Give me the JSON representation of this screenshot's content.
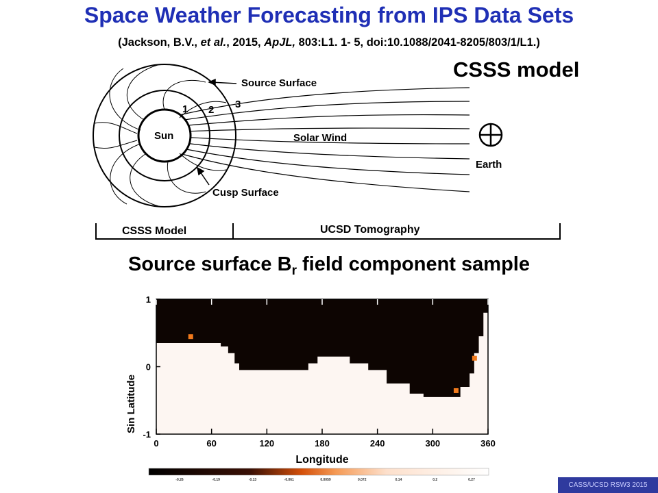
{
  "slide": {
    "title": "Space Weather Forecasting from IPS Data Sets",
    "citation": {
      "open": "(Jackson, B.V., ",
      "etal": "et al.",
      "mid": ", 2015, ",
      "journal": "ApJL,",
      "rest": " 803:L1. 1- 5, doi:10.1088/2041-8205/803/1/L1.)"
    },
    "model_label": "CSSS model",
    "section_heading": "Source surface B",
    "section_heading_sub": "r",
    "section_heading_rest": " field component sample",
    "footer": "CASS/UCSD  RSW3 2015"
  },
  "diagram": {
    "source_surface": "Source Surface",
    "cusp_surface": "Cusp Surface",
    "solar_wind": "Solar Wind",
    "sun": "Sun",
    "earth": "Earth",
    "region_1": "1",
    "region_2": "2",
    "region_3": "3",
    "bracket_left": "CSSS Model",
    "bracket_right": "UCSD Tomography"
  },
  "chart_data": {
    "type": "heatmap",
    "xlabel": "Longitude",
    "ylabel": "Sin Latitude",
    "x_ticks": [
      "0",
      "60",
      "120",
      "180",
      "240",
      "300",
      "360"
    ],
    "y_ticks": [
      "1",
      "0",
      "-1"
    ],
    "xlim": [
      0,
      360
    ],
    "ylim": [
      -1,
      1
    ],
    "neutral_line": [
      {
        "lon": 0,
        "sinlat": 0.35
      },
      {
        "lon": 30,
        "sinlat": 0.35
      },
      {
        "lon": 50,
        "sinlat": 0.35
      },
      {
        "lon": 70,
        "sinlat": 0.3
      },
      {
        "lon": 78,
        "sinlat": 0.2
      },
      {
        "lon": 85,
        "sinlat": 0.05
      },
      {
        "lon": 90,
        "sinlat": -0.05
      },
      {
        "lon": 120,
        "sinlat": -0.05
      },
      {
        "lon": 150,
        "sinlat": -0.05
      },
      {
        "lon": 165,
        "sinlat": 0.05
      },
      {
        "lon": 175,
        "sinlat": 0.15
      },
      {
        "lon": 200,
        "sinlat": 0.15
      },
      {
        "lon": 210,
        "sinlat": 0.05
      },
      {
        "lon": 230,
        "sinlat": -0.05
      },
      {
        "lon": 250,
        "sinlat": -0.25
      },
      {
        "lon": 275,
        "sinlat": -0.4
      },
      {
        "lon": 290,
        "sinlat": -0.45
      },
      {
        "lon": 315,
        "sinlat": -0.45
      },
      {
        "lon": 330,
        "sinlat": -0.3
      },
      {
        "lon": 340,
        "sinlat": -0.1
      },
      {
        "lon": 345,
        "sinlat": 0.2
      },
      {
        "lon": 350,
        "sinlat": 0.45
      },
      {
        "lon": 355,
        "sinlat": 0.8
      },
      {
        "lon": 360,
        "sinlat": 1.0
      }
    ],
    "hot_pixels": [
      {
        "lon": 37,
        "sinlat": 0.45
      },
      {
        "lon": 345,
        "sinlat": 0.13
      },
      {
        "lon": 325,
        "sinlat": -0.35
      }
    ],
    "colorbar_ticks": [
      "-0.26",
      "-0.19",
      "-0.13",
      "-0.061",
      "0.0059",
      "0.072",
      "0.14",
      "0.2",
      "0.27"
    ],
    "colors": {
      "negative": "#0d0502",
      "positive": "#fdf6f2",
      "hot": "#f07a1c"
    }
  }
}
